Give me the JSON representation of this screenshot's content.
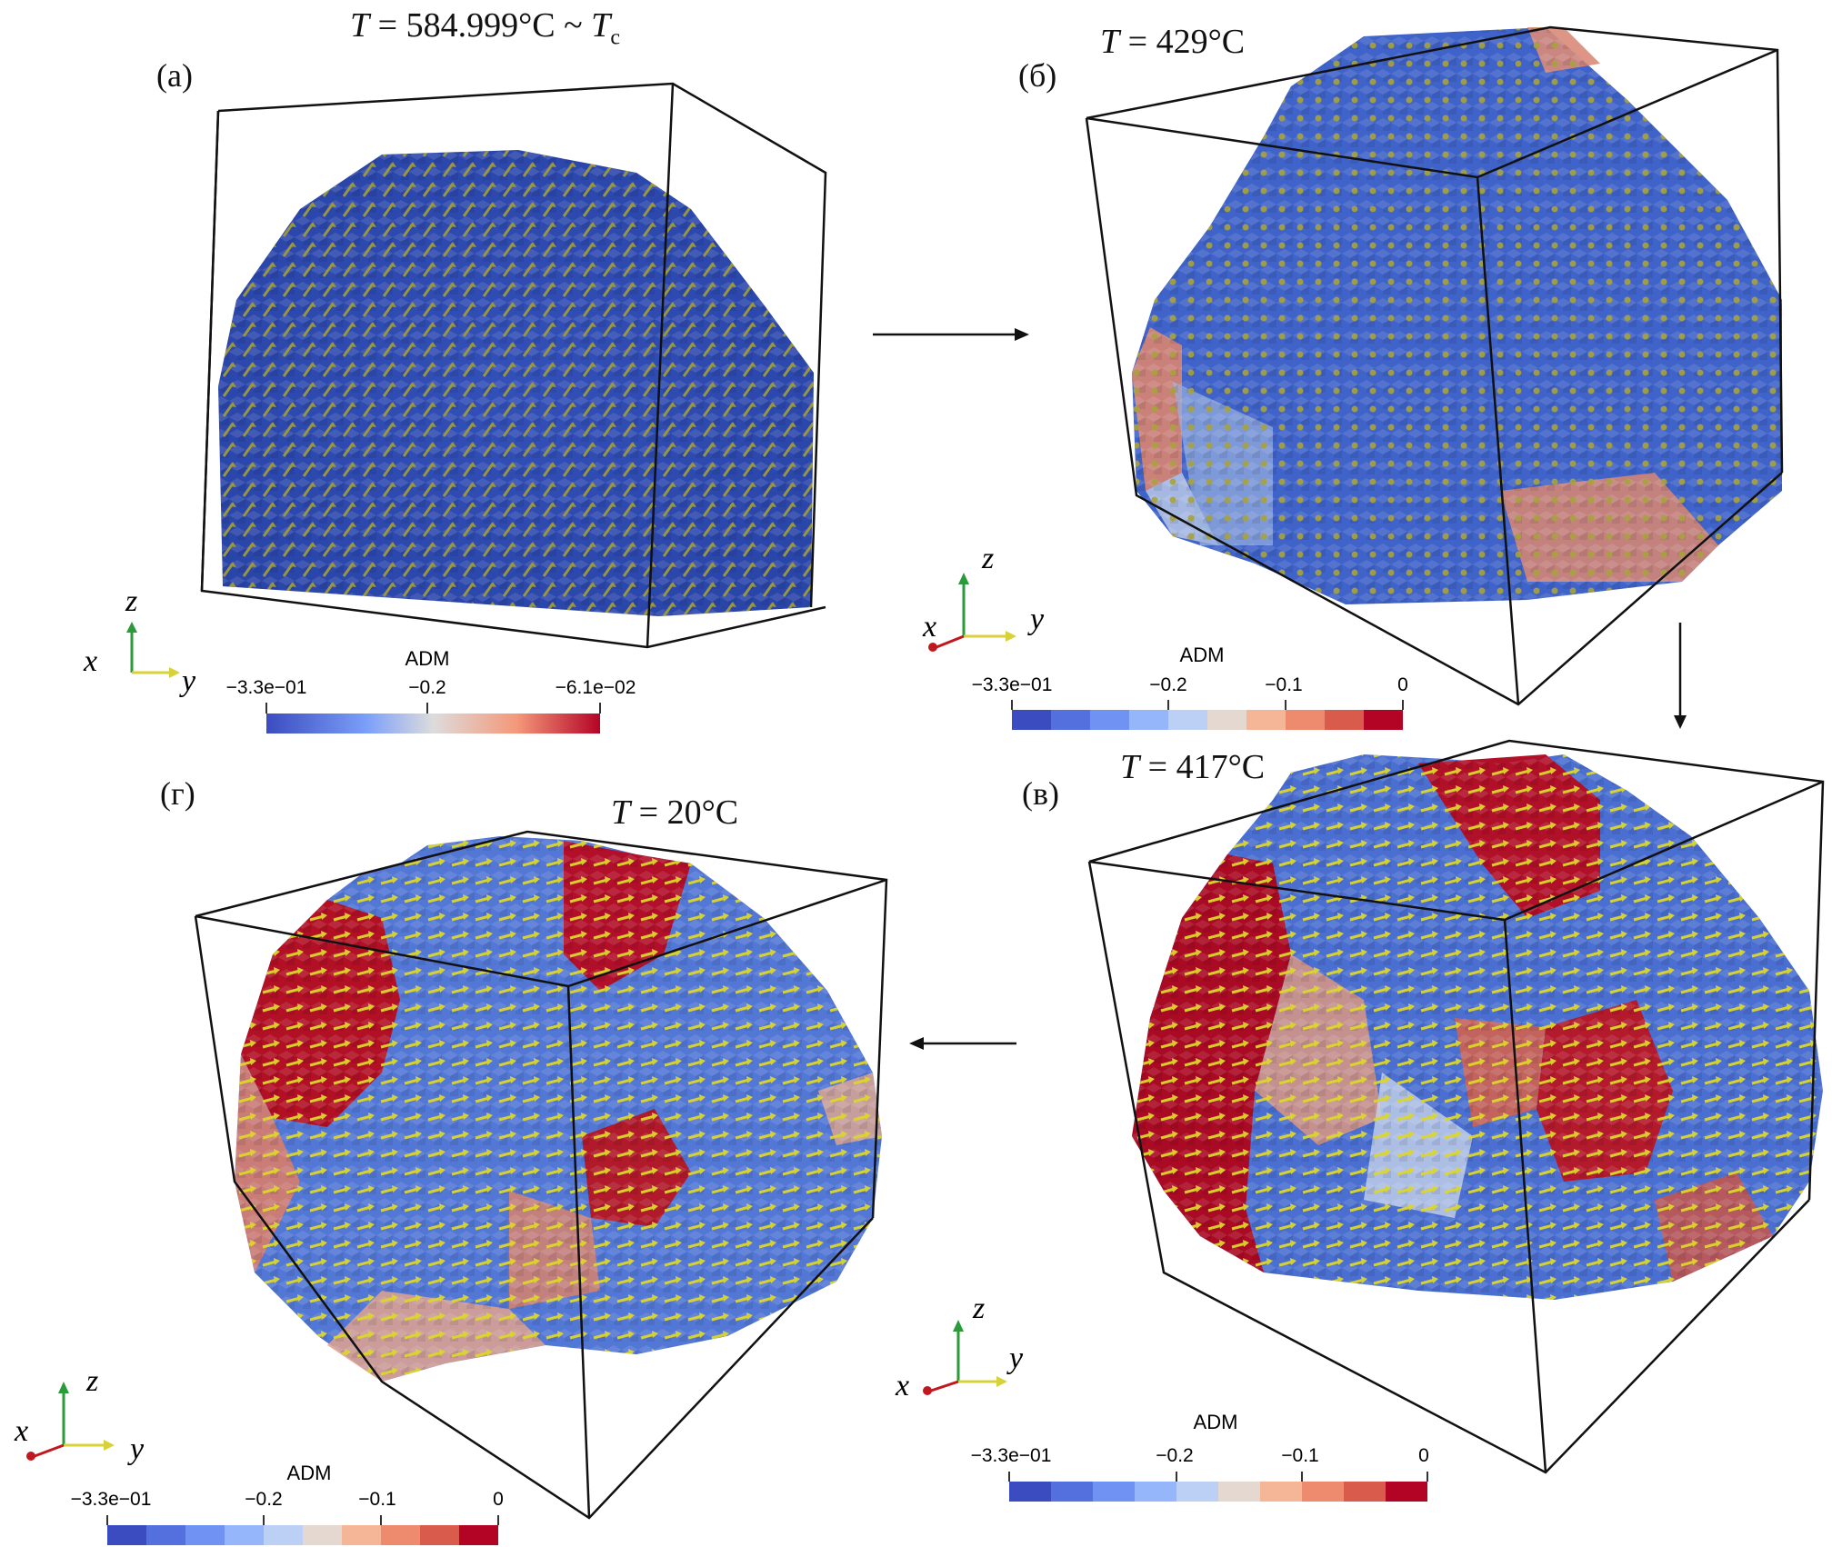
{
  "panels": {
    "a": {
      "letter": "(a)",
      "temp_prefix": "T",
      "temp_text": " = 584.999°C ~ ",
      "temp_suffix": "T",
      "temp_sub": "c",
      "colorbar": {
        "title": "ADM",
        "ticks": [
          "−3.3e−01",
          "−0.2",
          "−6.1e−02"
        ]
      },
      "axes": {
        "x": "x",
        "y": "y",
        "z": "z"
      }
    },
    "b": {
      "letter": "(б)",
      "temp_prefix": "T",
      "temp_text": " = 429°C",
      "colorbar": {
        "title": "ADM",
        "ticks": [
          "−3.3e−01",
          "−0.2",
          "−0.1",
          "0"
        ]
      },
      "axes": {
        "x": "x",
        "y": "y",
        "z": "z"
      }
    },
    "v": {
      "letter": "(в)",
      "temp_prefix": "T",
      "temp_text": " = 417°C",
      "colorbar": {
        "title": "ADM",
        "ticks": [
          "−3.3e−01",
          "−0.2",
          "−0.1",
          "0"
        ]
      },
      "axes": {
        "x": "x",
        "y": "y",
        "z": "z"
      }
    },
    "g": {
      "letter": "(г)",
      "temp_prefix": "T",
      "temp_text": " = 20°C",
      "colorbar": {
        "title": "ADM",
        "ticks": [
          "−3.3e−01",
          "−0.2",
          "−0.1",
          "0"
        ]
      },
      "axes": {
        "x": "x",
        "y": "y",
        "z": "z"
      }
    }
  },
  "colors": {
    "blue_dark": "#3b4cc0",
    "blue_mid": "#6f92f3",
    "neutral": "#dddcdc",
    "red_mid": "#f08a6d",
    "red_dark": "#b40426",
    "arrow_olive": "#9e9a3a",
    "arrow_yellow": "#e6e02a",
    "axis_green": "#2a9a3a",
    "axis_red": "#c0181e"
  }
}
